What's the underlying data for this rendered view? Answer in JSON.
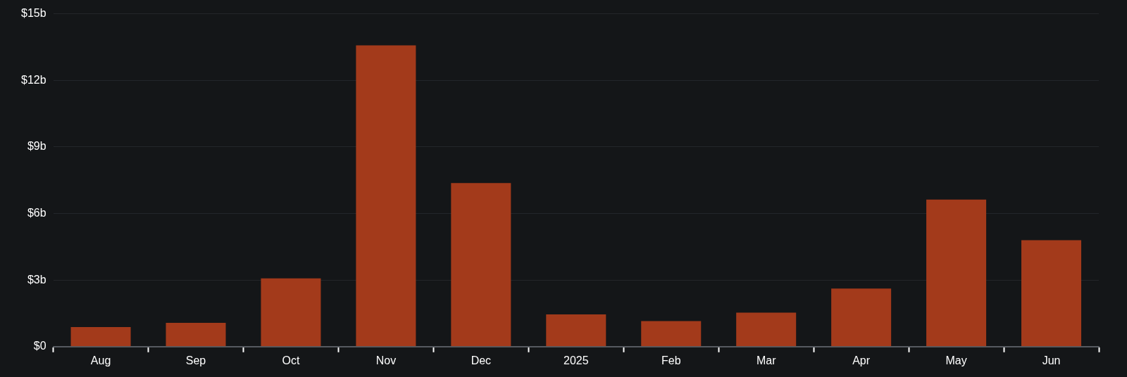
{
  "chart_data": {
    "type": "bar",
    "categories": [
      "Aug",
      "Sep",
      "Oct",
      "Nov",
      "Dec",
      "2025",
      "Feb",
      "Mar",
      "Apr",
      "May",
      "Jun"
    ],
    "values": [
      0.88,
      1.07,
      3.08,
      13.58,
      7.37,
      1.45,
      1.15,
      1.53,
      2.62,
      6.63,
      4.8
    ],
    "color": "#a33a1b",
    "ylim": [
      0,
      15
    ],
    "yticks": [
      {
        "value": 0,
        "label": "$0"
      },
      {
        "value": 3,
        "label": "$3b"
      },
      {
        "value": 6,
        "label": "$6b"
      },
      {
        "value": 9,
        "label": "$9b"
      },
      {
        "value": 12,
        "label": "$12b"
      },
      {
        "value": 15,
        "label": "$15b"
      }
    ],
    "grid": "y",
    "legend": false
  }
}
